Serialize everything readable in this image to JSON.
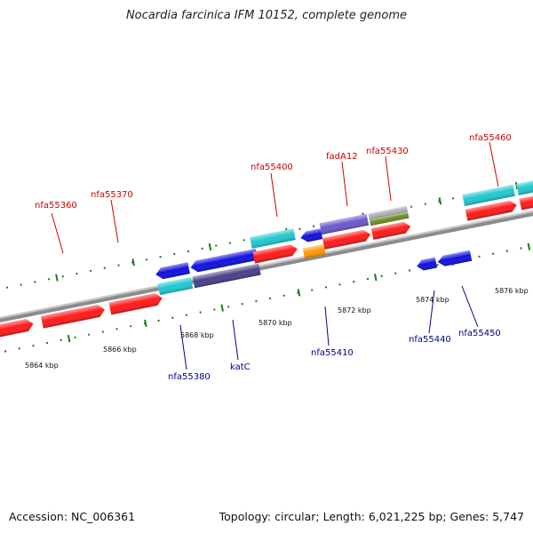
{
  "title": "Nocardia farcinica IFM 10152, complete genome",
  "footer": {
    "accession": "Accession: NC_006361",
    "summary": "Topology: circular; Length: 6,021,225 bp; Genes: 5,747"
  },
  "colors": {
    "backbone": "#888888",
    "forward_label": "#cc0000",
    "reverse_label": "#00008b",
    "tick": "#1a7a1a",
    "red": "#ff1a1a",
    "cyan": "#20c8d0",
    "blue": "#1010e0",
    "lavender": "#6a5acd",
    "navy": "#4a3f8a",
    "olive": "#6b8e23",
    "gray": "#b0b0b8",
    "orange": "#ff9a00"
  },
  "scale_labels": [
    "5864 kbp",
    "5866 kbp",
    "5868 kbp",
    "5870 kbp",
    "5872 kbp",
    "5874 kbp",
    "5876 kbp"
  ],
  "gene_labels": {
    "forward": [
      "nfa55360",
      "nfa55370",
      "nfa55400",
      "fadA12",
      "nfa55430",
      "nfa55460"
    ],
    "reverse": [
      "nfa55380",
      "katC",
      "nfa55410",
      "nfa55440",
      "nfa55450"
    ]
  }
}
